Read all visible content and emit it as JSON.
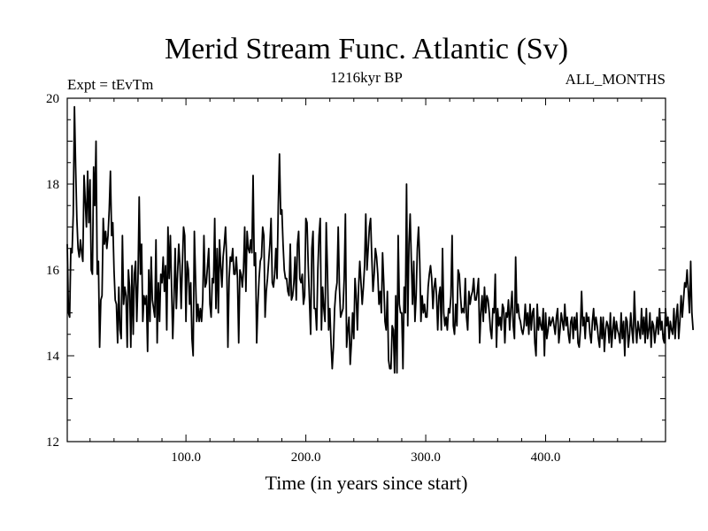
{
  "chart_data": {
    "type": "line",
    "title": "Merid Stream Func. Atlantic (Sv)",
    "subtitle_left": "Expt = tEvTm",
    "subtitle_center": "1216kyr BP",
    "subtitle_right": "ALL_MONTHS",
    "xlabel": "Time (in years since start)",
    "ylabel": "",
    "xlim": [
      1,
      500
    ],
    "ylim": [
      12,
      20
    ],
    "x_ticks": [
      100,
      200,
      300,
      400
    ],
    "x_tick_labels": [
      "100.0",
      "200.0",
      "300.0",
      "400.0"
    ],
    "y_ticks": [
      12,
      14,
      16,
      18,
      20
    ],
    "y_tick_labels": [
      "12",
      "14",
      "16",
      "18",
      "20"
    ],
    "series": [
      {
        "name": "Merid Stream Func. Atlantic",
        "color": "#000000",
        "x_start": 1,
        "x_step": 1,
        "values": [
          16.6,
          15.0,
          14.9,
          16.5,
          16.4,
          17.3,
          19.8,
          18.4,
          17.2,
          16.5,
          16.3,
          16.7,
          16.4,
          16.2,
          18.2,
          17.6,
          17.0,
          18.3,
          17.1,
          18.1,
          16.0,
          15.9,
          18.4,
          17.5,
          19.0,
          15.9,
          16.2,
          14.2,
          15.3,
          15.4,
          17.2,
          16.6,
          16.9,
          16.5,
          16.8,
          17.4,
          18.3,
          16.8,
          17.1,
          16.0,
          15.3,
          15.2,
          14.3,
          15.6,
          14.6,
          14.4,
          16.8,
          15.2,
          15.6,
          15.4,
          14.2,
          16.0,
          15.6,
          14.2,
          16.1,
          14.5,
          15.9,
          16.2,
          14.8,
          15.8,
          17.7,
          15.9,
          16.6,
          14.8,
          15.4,
          15.2,
          15.4,
          14.1,
          16.0,
          14.8,
          16.3,
          15.3,
          15.1,
          14.9,
          16.7,
          14.3,
          15.7,
          14.8,
          15.9,
          15.7,
          16.3,
          15.5,
          16.1,
          14.6,
          17.0,
          15.8,
          16.8,
          15.6,
          14.4,
          15.3,
          16.5,
          15.1,
          15.9,
          16.6,
          16.1,
          15.1,
          16.1,
          17.0,
          16.8,
          14.8,
          16.2,
          16.0,
          15.2,
          15.7,
          14.4,
          14.0,
          16.9,
          15.8,
          14.8,
          15.2,
          14.8,
          15.1,
          14.8,
          15.3,
          16.8,
          15.6,
          15.7,
          16.1,
          16.5,
          15.2,
          14.9,
          15.8,
          15.7,
          17.2,
          15.1,
          16.5,
          15.0,
          16.7,
          16.1,
          15.6,
          16.3,
          16.6,
          17.0,
          16.2,
          14.2,
          15.8,
          16.3,
          16.2,
          16.5,
          15.9,
          15.9,
          16.3,
          15.8,
          14.3,
          16.0,
          15.9,
          15.6,
          16.0,
          17.0,
          15.5,
          16.9,
          16.5,
          16.4,
          16.7,
          16.4,
          18.2,
          16.1,
          16.4,
          14.3,
          15.2,
          15.8,
          16.2,
          16.3,
          17.0,
          16.8,
          14.9,
          15.5,
          15.8,
          16.2,
          16.6,
          17.2,
          15.7,
          15.6,
          15.9,
          16.5,
          15.8,
          17.5,
          18.7,
          17.3,
          17.4,
          16.6,
          16.0,
          15.8,
          15.8,
          15.5,
          15.4,
          16.6,
          15.3,
          15.4,
          15.7,
          16.3,
          15.3,
          16.6,
          16.9,
          15.8,
          15.7,
          15.9,
          15.2,
          15.4,
          17.2,
          17.1,
          16.1,
          15.3,
          14.5,
          16.5,
          16.9,
          15.1,
          15.1,
          14.6,
          16.0,
          16.8,
          17.2,
          14.6,
          15.6,
          15.1,
          14.8,
          17.1,
          16.0,
          14.6,
          15.1,
          14.3,
          13.7,
          14.2,
          15.1,
          15.5,
          15.7,
          17.0,
          15.6,
          14.9,
          15.0,
          15.1,
          15.8,
          17.3,
          14.2,
          14.6,
          14.9,
          13.8,
          14.3,
          15.0,
          14.4,
          15.8,
          15.4,
          14.6,
          15.6,
          16.2,
          15.7,
          15.2,
          15.6,
          16.1,
          17.3,
          16.0,
          16.5,
          17.0,
          17.2,
          16.3,
          15.5,
          15.9,
          16.5,
          16.3,
          15.9,
          15.2,
          15.5,
          15.0,
          16.4,
          15.7,
          14.8,
          14.6,
          15.5,
          13.9,
          13.7,
          13.7,
          14.7,
          14.6,
          13.6,
          15.4,
          13.6,
          16.8,
          15.2,
          15.0,
          15.0,
          13.7,
          15.6,
          15.0,
          18.0,
          14.7,
          16.6,
          17.3,
          16.2,
          15.2,
          16.2,
          14.8,
          15.4,
          16.5,
          17.0,
          16.2,
          14.8,
          15.4,
          15.0,
          15.2,
          14.9,
          14.9,
          15.6,
          15.9,
          16.1,
          15.8,
          15.1,
          15.6,
          15.8,
          15.4,
          14.6,
          15.4,
          15.6,
          14.6,
          16.5,
          15.0,
          14.7,
          14.9,
          14.6,
          15.1,
          15.0,
          15.4,
          16.8,
          14.7,
          14.5,
          15.2,
          14.7,
          16.0,
          15.9,
          15.4,
          15.0,
          15.1,
          15.0,
          15.8,
          14.9,
          14.6,
          15.5,
          15.2,
          15.4,
          15.5,
          15.8,
          15.3,
          15.3,
          15.5,
          15.8,
          14.3,
          15.0,
          15.4,
          14.8,
          15.6,
          15.0,
          15.4,
          15.3,
          15.0,
          14.6,
          14.4,
          15.1,
          15.0,
          15.9,
          14.2,
          15.1,
          14.7,
          14.9,
          14.6,
          15.2,
          15.1,
          14.3,
          15.0,
          14.9,
          15.3,
          14.6,
          15.1,
          15.5,
          14.7,
          14.4,
          16.3,
          15.0,
          15.2,
          14.9,
          14.8,
          14.6,
          14.5,
          14.7,
          15.2,
          14.7,
          15.0,
          14.5,
          15.2,
          14.6,
          15.0,
          15.1,
          14.3,
          14.0,
          15.2,
          14.6,
          14.9,
          14.7,
          14.6,
          15.1,
          14.0,
          15.0,
          14.4,
          14.6,
          14.9,
          14.7,
          14.8,
          14.9,
          14.7,
          14.5,
          14.9,
          15.1,
          14.3,
          14.6,
          15.0,
          14.8,
          14.6,
          15.2,
          14.7,
          14.9,
          14.5,
          14.3,
          14.8,
          14.9,
          14.4,
          14.9,
          14.6,
          15.0,
          14.3,
          14.2,
          14.6,
          15.5,
          14.7,
          14.9,
          14.4,
          15.0,
          14.8,
          14.9,
          14.5,
          14.3,
          14.8,
          15.1,
          14.6,
          14.9,
          14.7,
          14.4,
          14.2,
          14.9,
          14.4,
          14.9,
          14.1,
          14.6,
          14.8,
          14.7,
          14.3,
          15.0,
          14.2,
          14.6,
          14.9,
          14.4,
          14.8,
          14.6,
          14.5,
          14.3,
          15.0,
          14.4,
          14.8,
          14.0,
          14.9,
          14.8,
          14.2,
          14.5,
          15.0,
          14.6,
          14.3,
          15.5,
          14.7,
          14.3,
          14.8,
          14.6,
          14.4,
          15.1,
          14.5,
          14.9,
          14.3,
          15.1,
          14.4,
          14.6,
          15.0,
          14.2,
          14.8,
          14.7,
          14.3,
          14.6,
          14.9,
          14.5,
          15.1,
          14.6,
          14.8,
          14.4,
          14.3,
          15.1,
          14.7,
          14.9,
          14.4,
          14.8,
          14.6,
          14.5,
          15.1,
          14.4,
          14.9,
          15.2,
          14.4,
          14.8,
          15.4,
          14.9,
          15.3,
          15.7,
          15.6,
          16.0,
          15.5,
          15.0,
          16.2,
          15.0,
          14.6
        ]
      }
    ]
  }
}
